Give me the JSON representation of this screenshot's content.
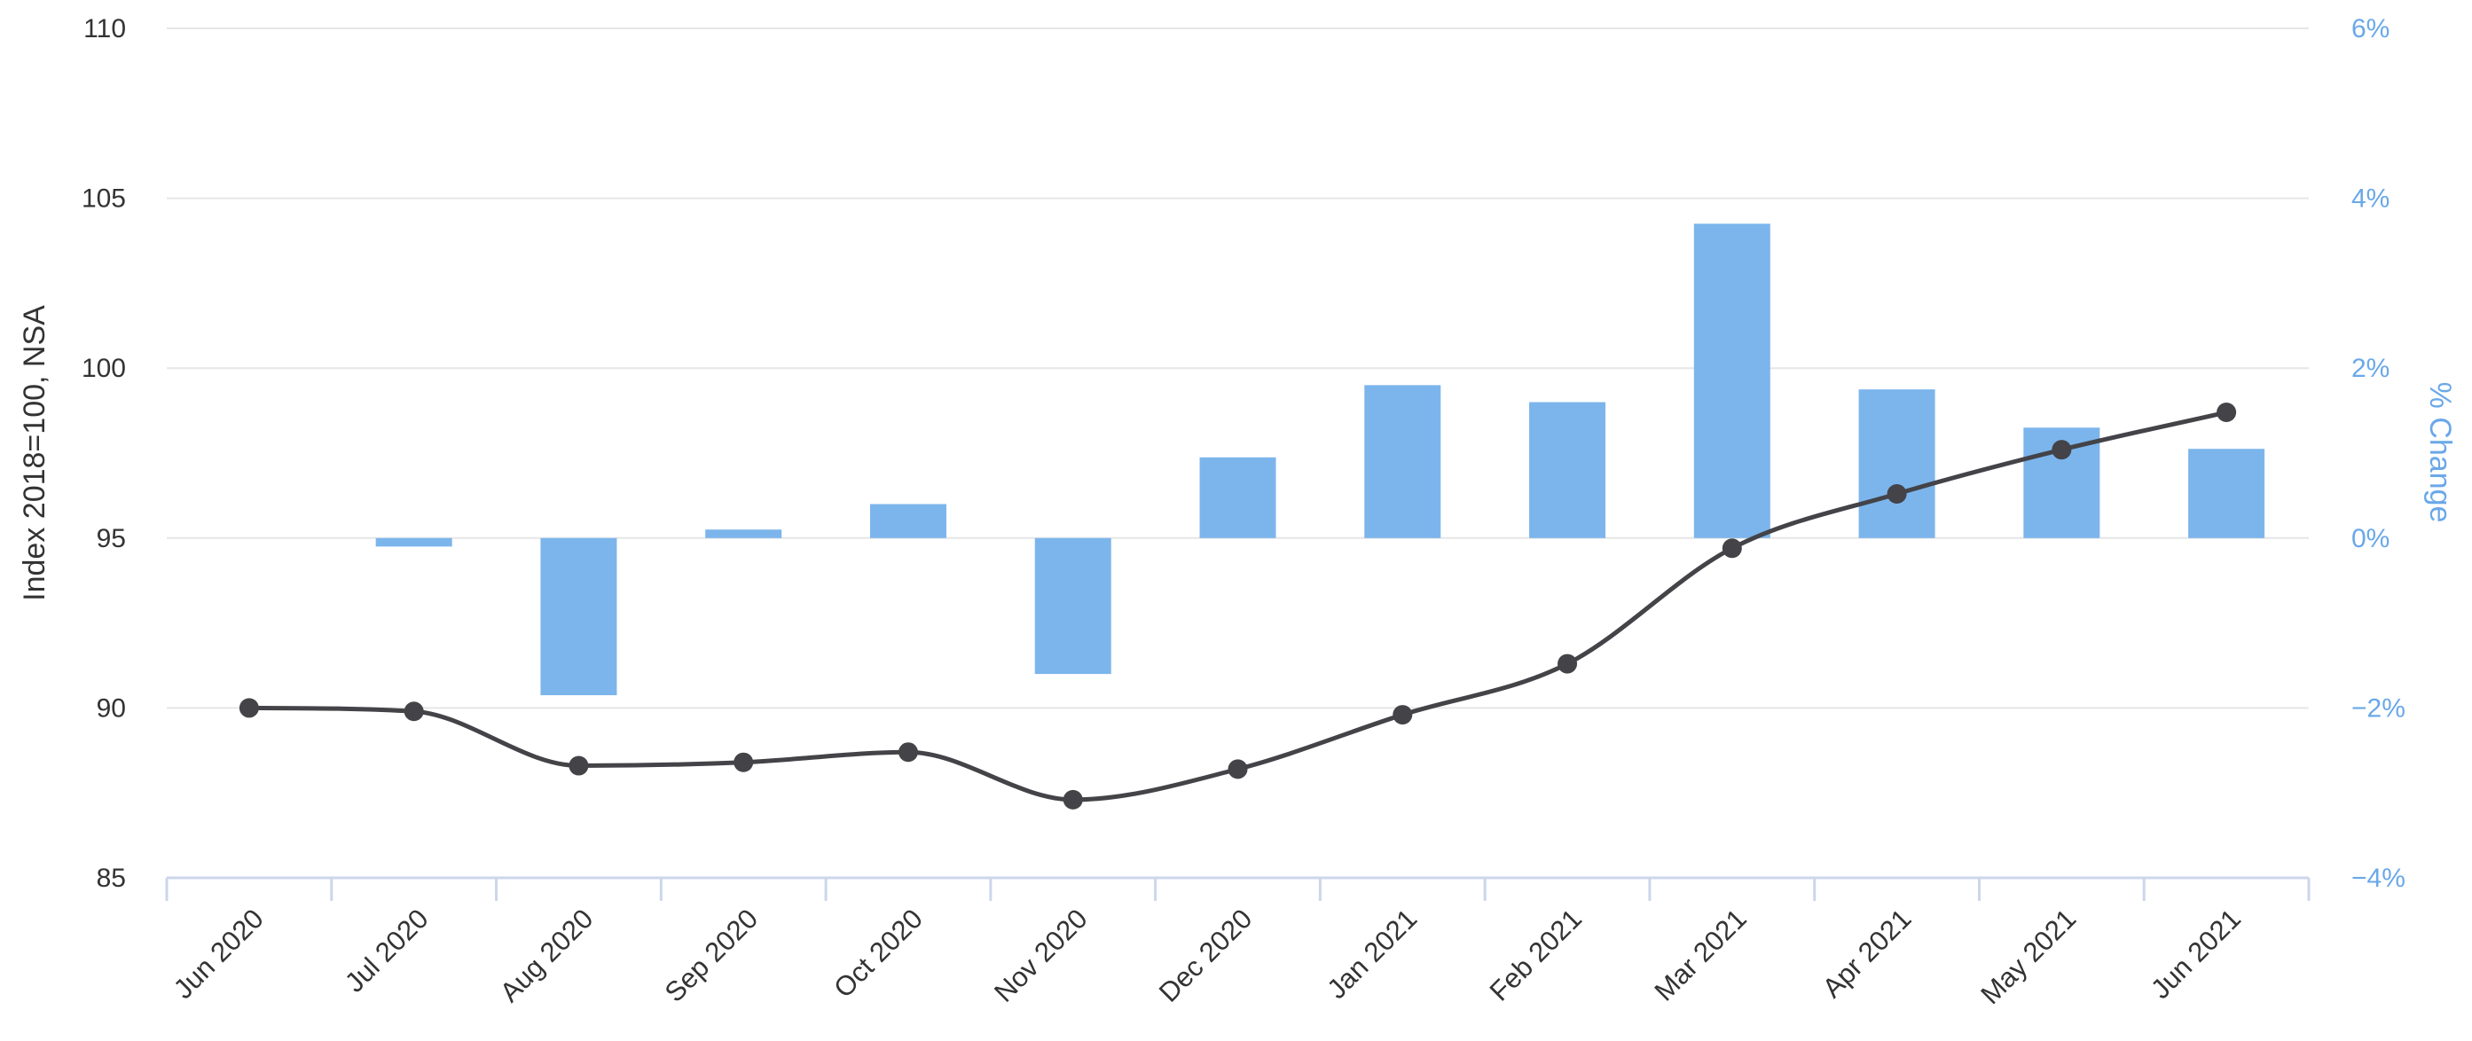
{
  "chart_data": {
    "type": "bar",
    "title": "",
    "categories": [
      "Jun 2020",
      "Jul 2020",
      "Aug 2020",
      "Sep 2020",
      "Oct 2020",
      "Nov 2020",
      "Dec 2020",
      "Jan 2021",
      "Feb 2021",
      "Mar 2021",
      "Apr 2021",
      "May 2021",
      "Jun 2021"
    ],
    "series": [
      {
        "type": "bar",
        "axis": "right",
        "color": "#7cb5ec",
        "values": [
          null,
          -0.1,
          -1.85,
          0.1,
          0.4,
          -1.6,
          0.95,
          1.8,
          1.6,
          3.7,
          1.75,
          1.3,
          1.05
        ]
      },
      {
        "type": "line",
        "axis": "left",
        "color": "#434348",
        "values": [
          90.0,
          89.9,
          88.3,
          88.4,
          88.7,
          87.3,
          88.2,
          89.8,
          91.3,
          94.7,
          96.3,
          97.6,
          98.7
        ]
      }
    ],
    "left_axis": {
      "label": "Index 2018=100, NSA",
      "range": [
        85,
        110
      ],
      "ticks": [
        "85",
        "90",
        "95",
        "100",
        "105",
        "110"
      ]
    },
    "right_axis": {
      "label": "% Change",
      "range": [
        -4,
        6
      ],
      "ticks": [
        "−4%",
        "−2%",
        "0%",
        "2%",
        "4%",
        "6%"
      ],
      "color": "#7cb5ec"
    },
    "grid": true,
    "legend": "none"
  }
}
